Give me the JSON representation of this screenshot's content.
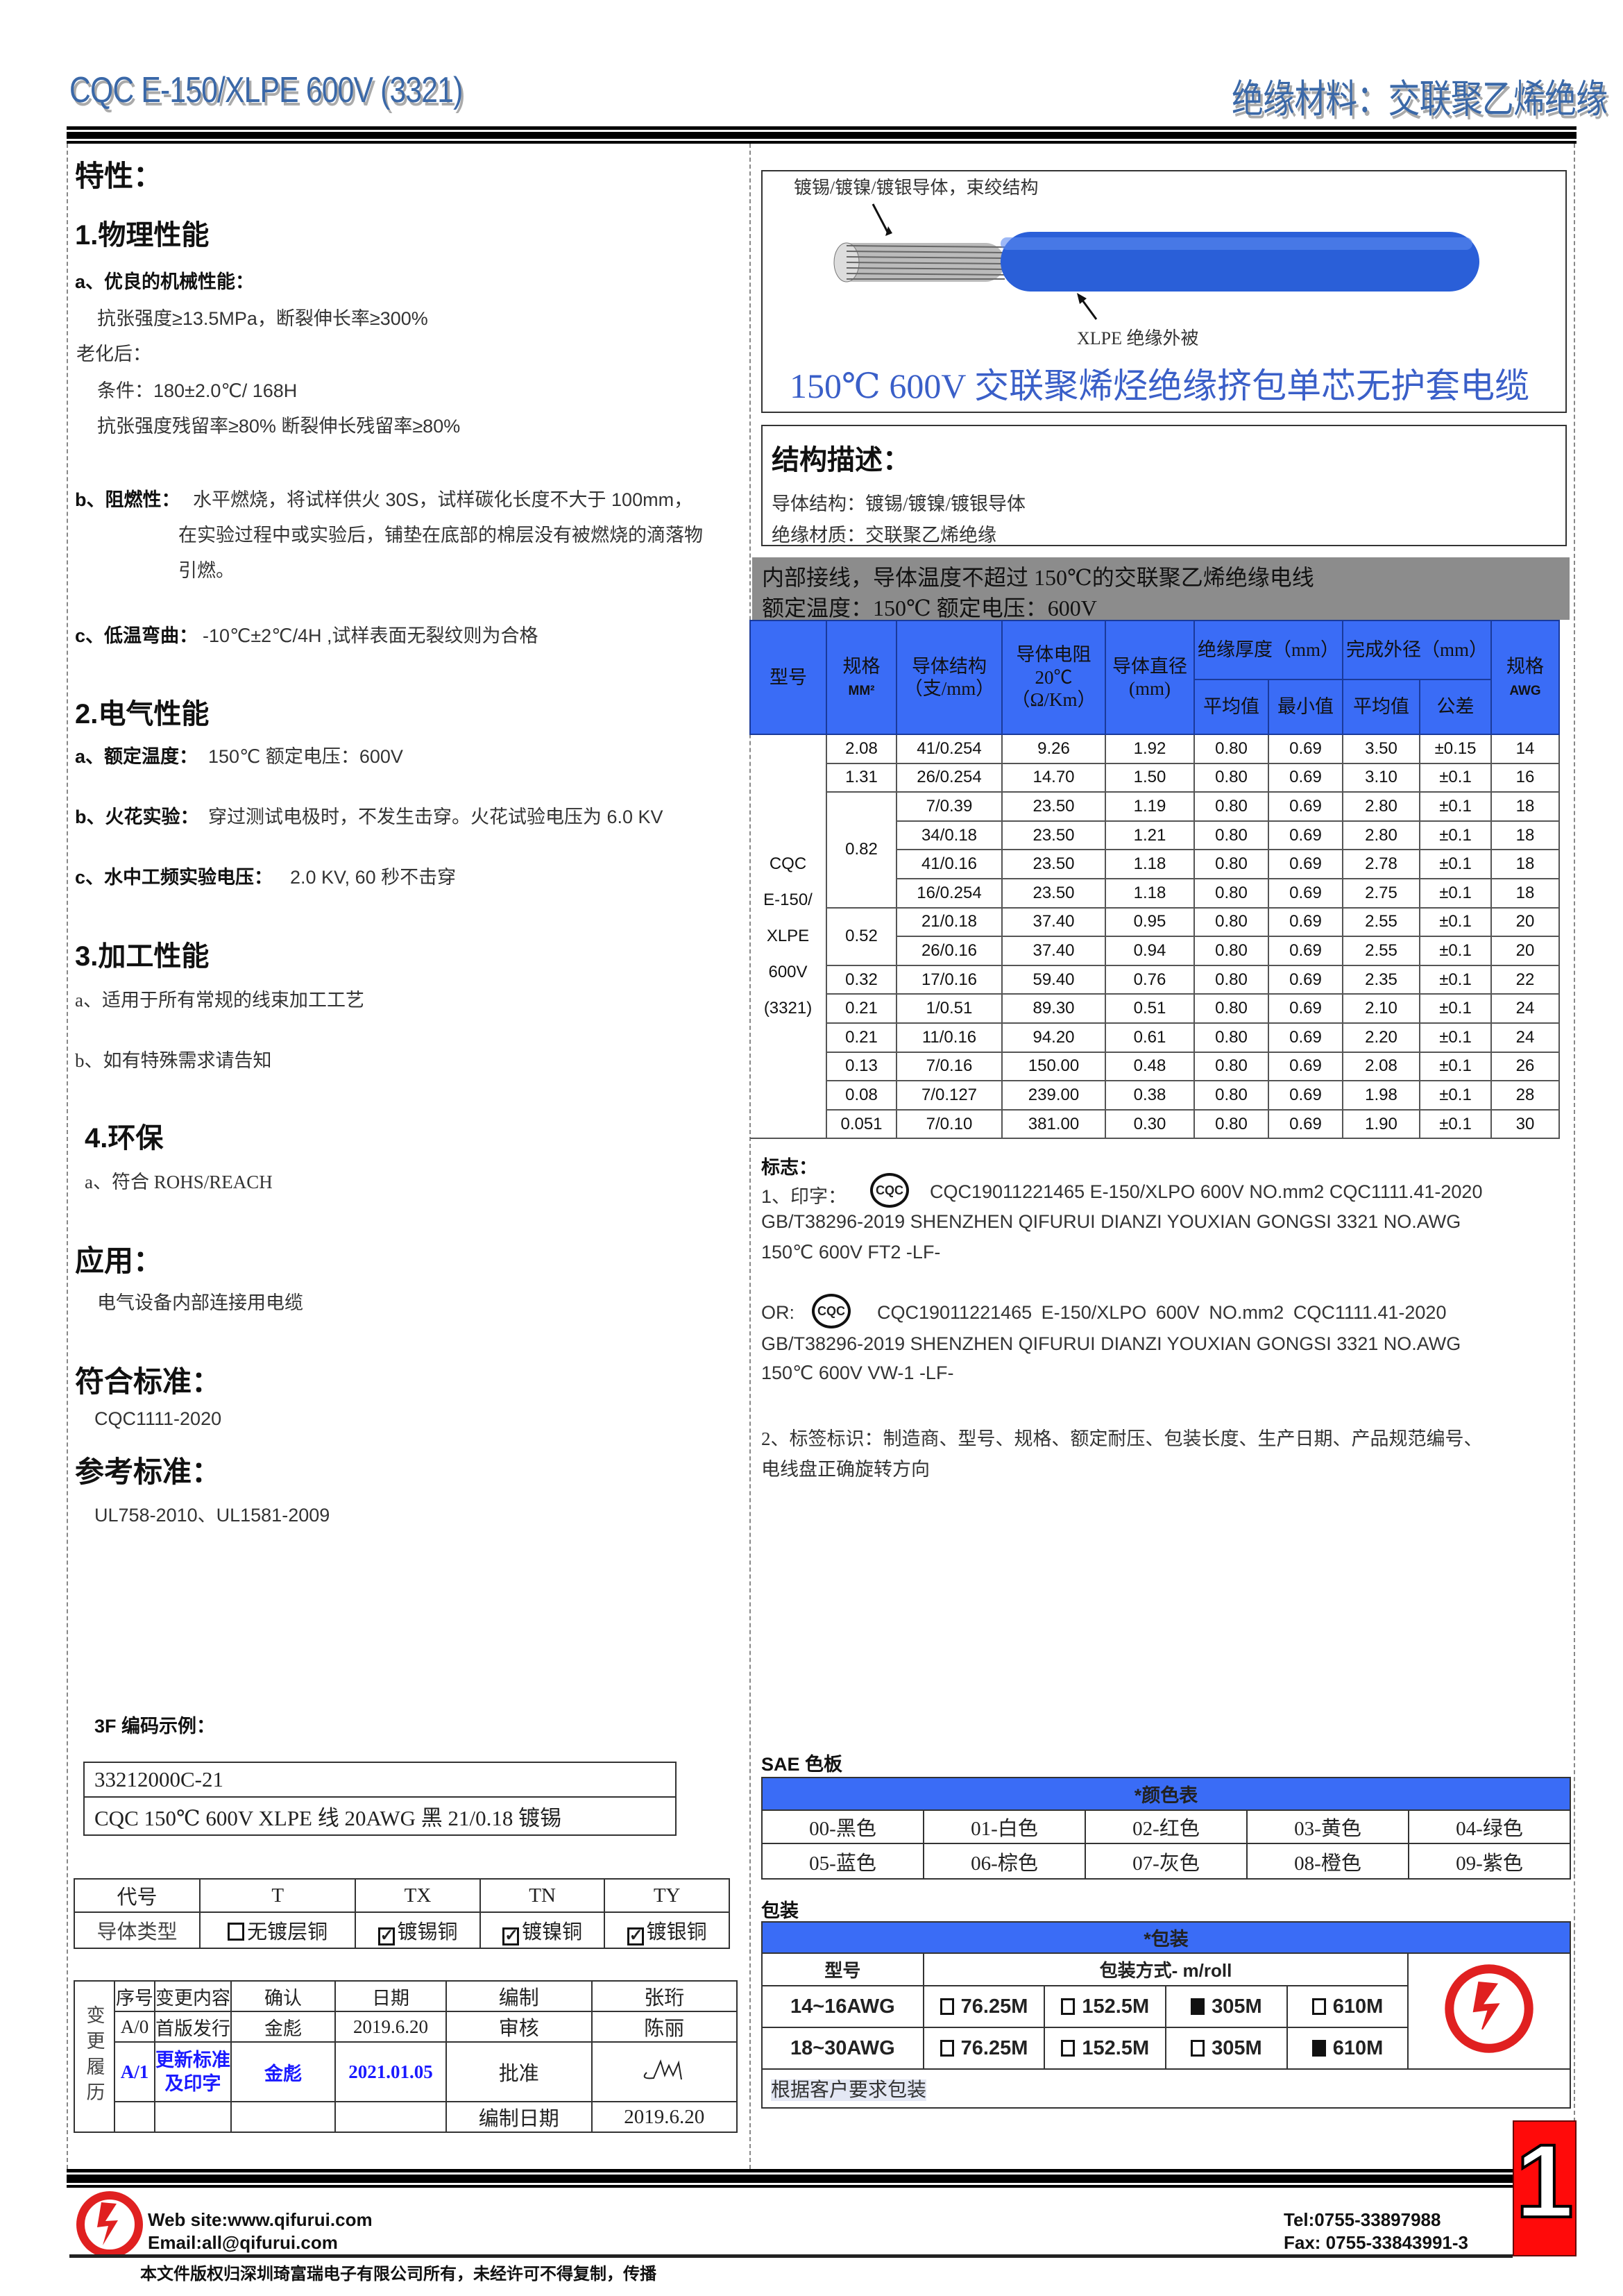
{
  "header": {
    "title": "CQC E-150/XLPE 600V (3321)",
    "subtitle": "绝缘材料：交联聚乙烯绝缘"
  },
  "left": {
    "features_title": "特性：",
    "physical_title": "1.物理性能",
    "mech_title": "a、优良的机械性能：",
    "mech_1": "抗张强度≥13.5MPa，断裂伸长率≥300%",
    "aging": "老化后：",
    "aging_cond": "条件：180±2.0℃/ 168H",
    "aging_ret": "抗张强度残留率≥80%  断裂伸长残留率≥80%",
    "flame_label": "b、阻燃性：",
    "flame_1": "水平燃烧，将试样供火 30S，试样碳化长度不大于 100mm，",
    "flame_2": "在实验过程中或实验后，铺垫在底部的棉层没有被燃烧的滴落物",
    "flame_3": "引燃。",
    "cold_label": "c、低温弯曲：",
    "cold_text": "-10℃±2℃/4H ,试样表面无裂纹则为合格",
    "elec_title": "2.电气性能",
    "rated_label": "a、额定温度：",
    "rated_text": "150℃   额定电压：600V",
    "spark_label": "b、火花实验：",
    "spark_text": "穿过测试电极时，不发生击穿。火花试验电压为 6.0 KV",
    "water_label": "c、水中工频实验电压：",
    "water_text": "2.0 KV, 60 秒不击穿",
    "proc_title": "3.加工性能",
    "proc_a": "a、适用于所有常规的线束加工工艺",
    "proc_b": "b、如有特殊需求请告知",
    "env_title": "4.环保",
    "env_a": "a、符合 ROHS/REACH",
    "app_title": "应用：",
    "app_text": "电气设备内部连接用电缆",
    "std_title": "符合标准：",
    "std_text": "CQC1111-2020",
    "ref_title": "参考标准：",
    "ref_text": "UL758-2010、UL1581-2009",
    "code_title": "3F 编码示例：",
    "code_line1": "33212000C-21",
    "code_line2": "CQC 150℃  600V XLPE 线  20AWG  黑  21/0.18 镀锡",
    "conductor_table": {
      "header": [
        "代号",
        "T",
        "TX",
        "TN",
        "TY"
      ],
      "row_label": "导体类型",
      "items": [
        {
          "label": "无镀层铜",
          "checked": false
        },
        {
          "label": "镀锡铜",
          "checked": true
        },
        {
          "label": "镀镍铜",
          "checked": true
        },
        {
          "label": "镀银铜",
          "checked": true
        }
      ]
    },
    "history": {
      "side_label": "变更履历",
      "headers": [
        "序号",
        "变更内容",
        "确认",
        "日期"
      ],
      "rows": [
        [
          "A/0",
          "首版发行",
          "金彪",
          "2019.6.20"
        ],
        [
          "A/1",
          "更新标准及印字",
          "金彪",
          "2021.01.05"
        ]
      ],
      "approvals": [
        [
          "编制",
          "张珩"
        ],
        [
          "审核",
          "陈丽"
        ],
        [
          "批准",
          ""
        ],
        [
          "编制日期",
          "2019.6.20"
        ]
      ],
      "highlight_color": "#1a1aff"
    }
  },
  "right": {
    "conductor_label": "镀锡/镀镍/镀银导体，束绞结构",
    "insulation_label": "XLPE  绝缘外被",
    "product_title": "150℃  600V 交联聚烯烃绝缘挤包单芯无护套电缆",
    "struct_title": "结构描述：",
    "struct_1": "导体结构：镀锡/镀镍/镀银导体",
    "struct_2": "绝缘材质：交联聚乙烯绝缘",
    "band_1": "内部接线，导体温度不超过 150℃的交联聚乙烯绝缘电线",
    "band_2": "额定温度：150℃  额定电压：600V",
    "spec_table": {
      "h_model": "型号",
      "h_size": "规格",
      "h_size_unit": "MM²",
      "h_cond": "导体结构（支/mm）",
      "h_res": "导体电阻 20℃ （Ω/Km）",
      "h_dia": "导体直径(mm)",
      "h_ins": "绝缘厚度（mm）",
      "h_od": "完成外径（mm）",
      "h_awg": "规格",
      "h_awg_unit": "AWG",
      "h_avg": "平均值",
      "h_min": "最小值",
      "h_avg2": "平均值",
      "h_tol": "公差",
      "model_lines": [
        "CQC",
        "E-150/",
        "XLPE",
        "600V",
        "(3321)"
      ],
      "groups": [
        {
          "size": "2.08",
          "rows": [
            [
              "41/0.254",
              "9.26",
              "1.92",
              "0.80",
              "0.69",
              "3.50",
              "±0.15",
              "14"
            ]
          ]
        },
        {
          "size": "1.31",
          "rows": [
            [
              "26/0.254",
              "14.70",
              "1.50",
              "0.80",
              "0.69",
              "3.10",
              "±0.1",
              "16"
            ]
          ]
        },
        {
          "size": "0.82",
          "rows": [
            [
              "7/0.39",
              "23.50",
              "1.19",
              "0.80",
              "0.69",
              "2.80",
              "±0.1",
              "18"
            ],
            [
              "34/0.18",
              "23.50",
              "1.21",
              "0.80",
              "0.69",
              "2.80",
              "±0.1",
              "18"
            ],
            [
              "41/0.16",
              "23.50",
              "1.18",
              "0.80",
              "0.69",
              "2.78",
              "±0.1",
              "18"
            ],
            [
              "16/0.254",
              "23.50",
              "1.18",
              "0.80",
              "0.69",
              "2.75",
              "±0.1",
              "18"
            ]
          ]
        },
        {
          "size": "0.52",
          "rows": [
            [
              "21/0.18",
              "37.40",
              "0.95",
              "0.80",
              "0.69",
              "2.55",
              "±0.1",
              "20"
            ],
            [
              "26/0.16",
              "37.40",
              "0.94",
              "0.80",
              "0.69",
              "2.55",
              "±0.1",
              "20"
            ]
          ]
        },
        {
          "size": "0.32",
          "rows": [
            [
              "17/0.16",
              "59.40",
              "0.76",
              "0.80",
              "0.69",
              "2.35",
              "±0.1",
              "22"
            ]
          ]
        },
        {
          "size": "0.21",
          "rows": [
            [
              "1/0.51",
              "89.30",
              "0.51",
              "0.80",
              "0.69",
              "2.10",
              "±0.1",
              "24"
            ]
          ]
        },
        {
          "size": "0.21",
          "rows": [
            [
              "11/0.16",
              "94.20",
              "0.61",
              "0.80",
              "0.69",
              "2.20",
              "±0.1",
              "24"
            ]
          ]
        },
        {
          "size": "0.13",
          "rows": [
            [
              "7/0.16",
              "150.00",
              "0.48",
              "0.80",
              "0.69",
              "2.08",
              "±0.1",
              "26"
            ]
          ]
        },
        {
          "size": "0.08",
          "rows": [
            [
              "7/0.127",
              "239.00",
              "0.38",
              "0.80",
              "0.69",
              "1.98",
              "±0.1",
              "28"
            ]
          ]
        },
        {
          "size": "0.051",
          "rows": [
            [
              "7/0.10",
              "381.00",
              "0.30",
              "0.80",
              "0.69",
              "1.90",
              "±0.1",
              "30"
            ]
          ]
        }
      ]
    },
    "marking": {
      "title": "标志：",
      "p1_label": "1、印字：",
      "cqc_logo": "CQC",
      "p1_l1": "CQC19011221465  E-150/XLPO  600V  NO.mm2  CQC1111.41-2020",
      "p1_l2": "GB/T38296-2019 SHENZHEN QIFURUI DIANZI YOUXIAN GONGSI      3321 NO.AWG",
      "p1_l3": "150℃  600V FT2 -LF-",
      "or_label": "OR:",
      "p2_l1": "CQC19011221465     E-150/XLPO     600V     NO.mm2     CQC1111.41-2020",
      "p2_l2": "GB/T38296-2019 SHENZHEN QIFURUI DIANZI YOUXIAN GONGSI      3321 NO.AWG",
      "p2_l3": "150℃  600V VW-1 -LF-",
      "label_1": "2、标签标识：制造商、型号、规格、额定耐压、包装长度、生产日期、产品规范编号、",
      "label_2": "电线盘正确旋转方向"
    },
    "colors": {
      "title": "SAE 色板",
      "header": "*颜色表",
      "items": [
        "00-黑色",
        "01-白色",
        "02-红色",
        "03-黄色",
        "04-绿色",
        "05-蓝色",
        "06-棕色",
        "07-灰色",
        "08-橙色",
        "09-紫色"
      ]
    },
    "packing": {
      "title": "包装",
      "header": "*包装",
      "col_model": "型号",
      "col_method": "包装方式- m/roll",
      "rows": [
        {
          "model": "14~16AWG",
          "options": [
            {
              "label": "76.25M",
              "selected": false
            },
            {
              "label": "152.5M",
              "selected": false
            },
            {
              "label": "305M",
              "selected": true
            },
            {
              "label": "610M",
              "selected": false
            }
          ]
        },
        {
          "model": "18~30AWG",
          "options": [
            {
              "label": "76.25M",
              "selected": false
            },
            {
              "label": "152.5M",
              "selected": false
            },
            {
              "label": "305M",
              "selected": false
            },
            {
              "label": "610M",
              "selected": true
            }
          ]
        }
      ],
      "note": "根据客户要求包装"
    }
  },
  "footer": {
    "website": "Web site:www.qifurui.com",
    "email": "Email:all@qifurui.com",
    "tel": "Tel:0755-33897988",
    "fax": "Fax: 0755-33843991-3",
    "copyright": "本文件版权归深圳琦富瑞电子有限公司所有，未经许可不得复制，传播",
    "page_number": "1"
  },
  "accent_colors": {
    "header_blue": "#3a6cf6",
    "band_gray": "#8c8c8c",
    "title_blue": "#3a68a8",
    "brand_red": "#e02020"
  }
}
